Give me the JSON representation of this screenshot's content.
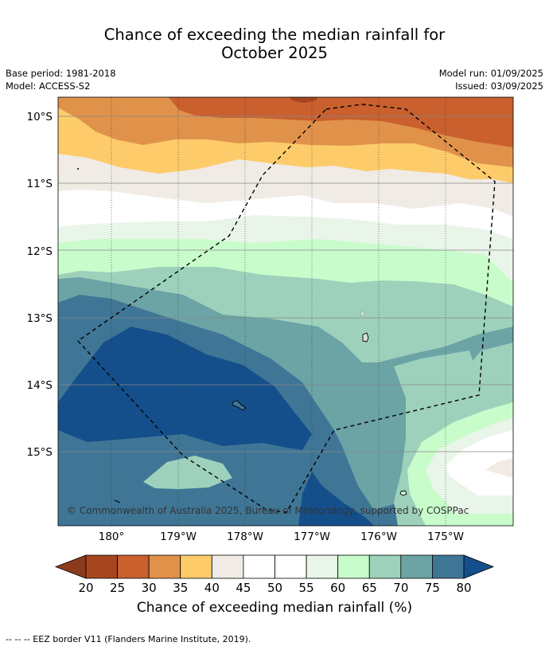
{
  "title": {
    "line1": "Chance of exceeding the median rainfall for",
    "line2": "October 2025"
  },
  "meta": {
    "base_period": "Base period: 1981-2018",
    "model": "Model: ACCESS-S2",
    "model_run": "Model run: 01/09/2025",
    "issued": "Issued: 03/09/2025"
  },
  "map": {
    "lat_labels": [
      "10°S",
      "11°S",
      "12°S",
      "13°S",
      "14°S",
      "15°S"
    ],
    "lon_labels": [
      "180°",
      "179°W",
      "178°W",
      "177°W",
      "176°W",
      "175°W"
    ],
    "copyright": "© Commonwealth of Australia 2025, Bureau of Meteorology, supported by COSPPac"
  },
  "colorbar": {
    "ticks": [
      "20",
      "25",
      "30",
      "35",
      "40",
      "45",
      "50",
      "55",
      "60",
      "65",
      "70",
      "75",
      "80"
    ],
    "colors": [
      "#a6461f",
      "#c9602e",
      "#e0924a",
      "#fdcb6a",
      "#f0ebe5",
      "#ffffff",
      "#ffffff",
      "#e9f5e8",
      "#c9fccb",
      "#9dd1bb",
      "#6ca3a5",
      "#3f7696",
      "#154f8b"
    ],
    "low_color": "#8b3a1e",
    "high_color": "#154f8b",
    "label": "Chance of exceeding median rainfall (%)"
  },
  "footnote": "--  --  -- EEZ border V11 (Flanders Marine Institute, 2019)."
}
